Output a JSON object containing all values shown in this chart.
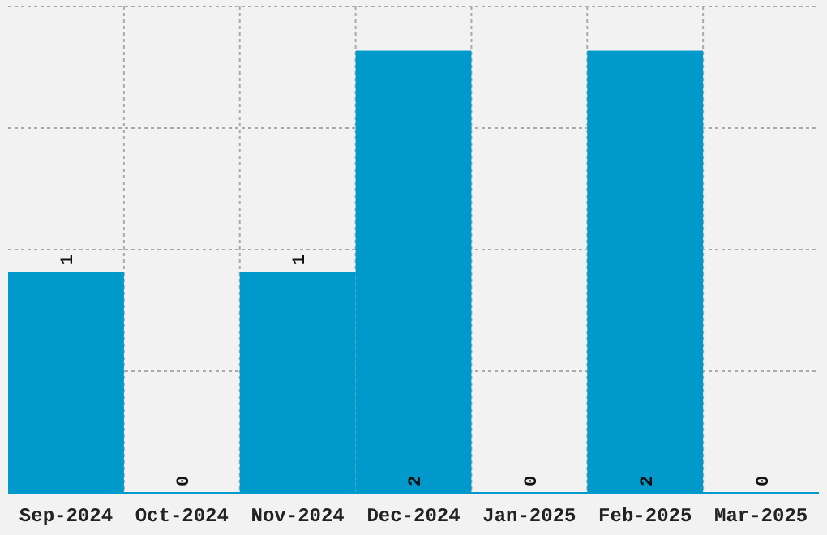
{
  "chart_data": {
    "type": "bar",
    "categories": [
      "Sep-2024",
      "Oct-2024",
      "Nov-2024",
      "Dec-2024",
      "Jan-2025",
      "Feb-2025",
      "Mar-2025"
    ],
    "values": [
      1,
      0,
      1,
      2,
      0,
      2,
      0
    ],
    "color": "#0099cc",
    "ylim": [
      0,
      2.2
    ],
    "yticks": [
      {
        "value": 0,
        "label": null
      },
      {
        "value": 0.55,
        "label": null
      },
      {
        "value": 1.1,
        "label": null
      },
      {
        "value": 1.65,
        "label": null
      },
      {
        "value": 2.2,
        "label": null
      }
    ],
    "grid": true,
    "tick_labels": "x",
    "data_labels": true
  }
}
